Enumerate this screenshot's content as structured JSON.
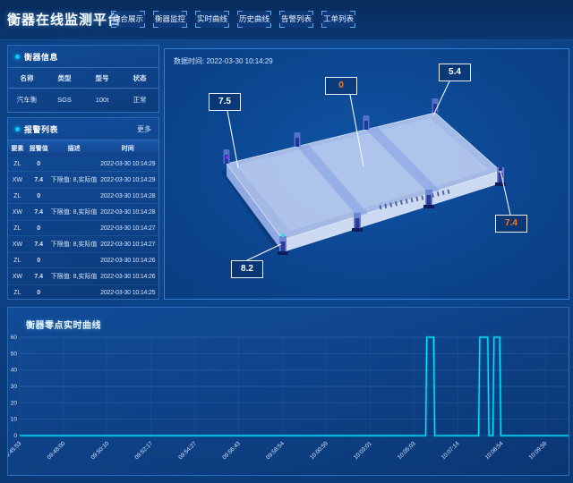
{
  "colors": {
    "alarm_red": "#ff2f2f",
    "warn_yellow": "#ffd21f",
    "ok_green": "#00e56b",
    "accent_cyan": "#00d2ff",
    "callout_orange": "#ff7a1a",
    "chart_line": "#00e5ff"
  },
  "header": {
    "title": "衡器在线监测平台",
    "tabs": [
      {
        "label": "综合展示"
      },
      {
        "label": "衡器监控"
      },
      {
        "label": "实时曲线"
      },
      {
        "label": "历史曲线"
      },
      {
        "label": "告警列表"
      },
      {
        "label": "工单列表"
      }
    ]
  },
  "device_info": {
    "title": "衡器信息",
    "columns": [
      "名称",
      "类型",
      "型号",
      "状态"
    ],
    "rows": [
      {
        "name": "汽车衡",
        "type": "SGS",
        "model": "100t",
        "status": "正常"
      }
    ]
  },
  "alarm_list": {
    "title": "报警列表",
    "more_label": "更多",
    "columns": [
      "要素",
      "报警值",
      "描述",
      "时间"
    ],
    "rows": [
      {
        "element": "ZL",
        "value": "0",
        "desc": "",
        "time": "2022-03-30 10:14:29"
      },
      {
        "element": "XW",
        "value": "7.4",
        "desc": "下限值: 8,实际值: 7.4",
        "time": "2022-03-30 10:14:29"
      },
      {
        "element": "ZL",
        "value": "0",
        "desc": "",
        "time": "2022-03-30 10:14:28"
      },
      {
        "element": "XW",
        "value": "7.4",
        "desc": "下限值: 8,实际值: 7.4",
        "time": "2022-03-30 10:14:28"
      },
      {
        "element": "ZL",
        "value": "0",
        "desc": "",
        "time": "2022-03-30 10:14:27"
      },
      {
        "element": "XW",
        "value": "7.4",
        "desc": "下限值: 8,实际值: 7.4",
        "time": "2022-03-30 10:14:27"
      },
      {
        "element": "ZL",
        "value": "0",
        "desc": "",
        "time": "2022-03-30 10:14:26"
      },
      {
        "element": "XW",
        "value": "7.4",
        "desc": "下限值: 8,实际值: 7.4",
        "time": "2022-03-30 10:14:26"
      },
      {
        "element": "ZL",
        "value": "0",
        "desc": "",
        "time": "2022-03-30 10:14:25"
      }
    ]
  },
  "monitor": {
    "data_time_label": "数据时间:",
    "data_time": "2022-03-30 10:14:29",
    "callouts": [
      {
        "value": "7.5",
        "color": "#ffffff"
      },
      {
        "value": "0",
        "color": "#ff7a1a"
      },
      {
        "value": "5.4",
        "color": "#ffffff"
      },
      {
        "value": "8.2",
        "color": "#ffffff"
      },
      {
        "value": "7.4",
        "color": "#ff7a1a"
      }
    ]
  },
  "chart_data": {
    "type": "line",
    "title": "衡器零点实时曲线",
    "x_tick_labels": [
      "09:45:53",
      "09:48:00",
      "09:50:10",
      "09:52:17",
      "09:54:27",
      "09:56:43",
      "09:58:54",
      "10:00:59",
      "10:03:01",
      "10:05:03",
      "10:07:14",
      "10:08:54",
      "10:09:59",
      "10:11:04"
    ],
    "y_ticks": [
      0,
      10,
      20,
      30,
      40,
      50,
      60
    ],
    "ylim": [
      0,
      60
    ],
    "grid": true,
    "line_color": "#00e5ff",
    "series": [
      {
        "name": "零点",
        "x_unit": "fraction-of-time-axis",
        "points": [
          [
            0,
            0
          ],
          [
            0.713,
            0
          ],
          [
            0.715,
            60
          ],
          [
            0.727,
            60
          ],
          [
            0.729,
            0
          ],
          [
            0.806,
            0
          ],
          [
            0.808,
            60
          ],
          [
            0.822,
            60
          ],
          [
            0.824,
            0
          ],
          [
            0.831,
            0
          ],
          [
            0.833,
            60
          ],
          [
            0.843,
            60
          ],
          [
            0.845,
            0
          ],
          [
            1,
            0
          ]
        ]
      }
    ]
  }
}
